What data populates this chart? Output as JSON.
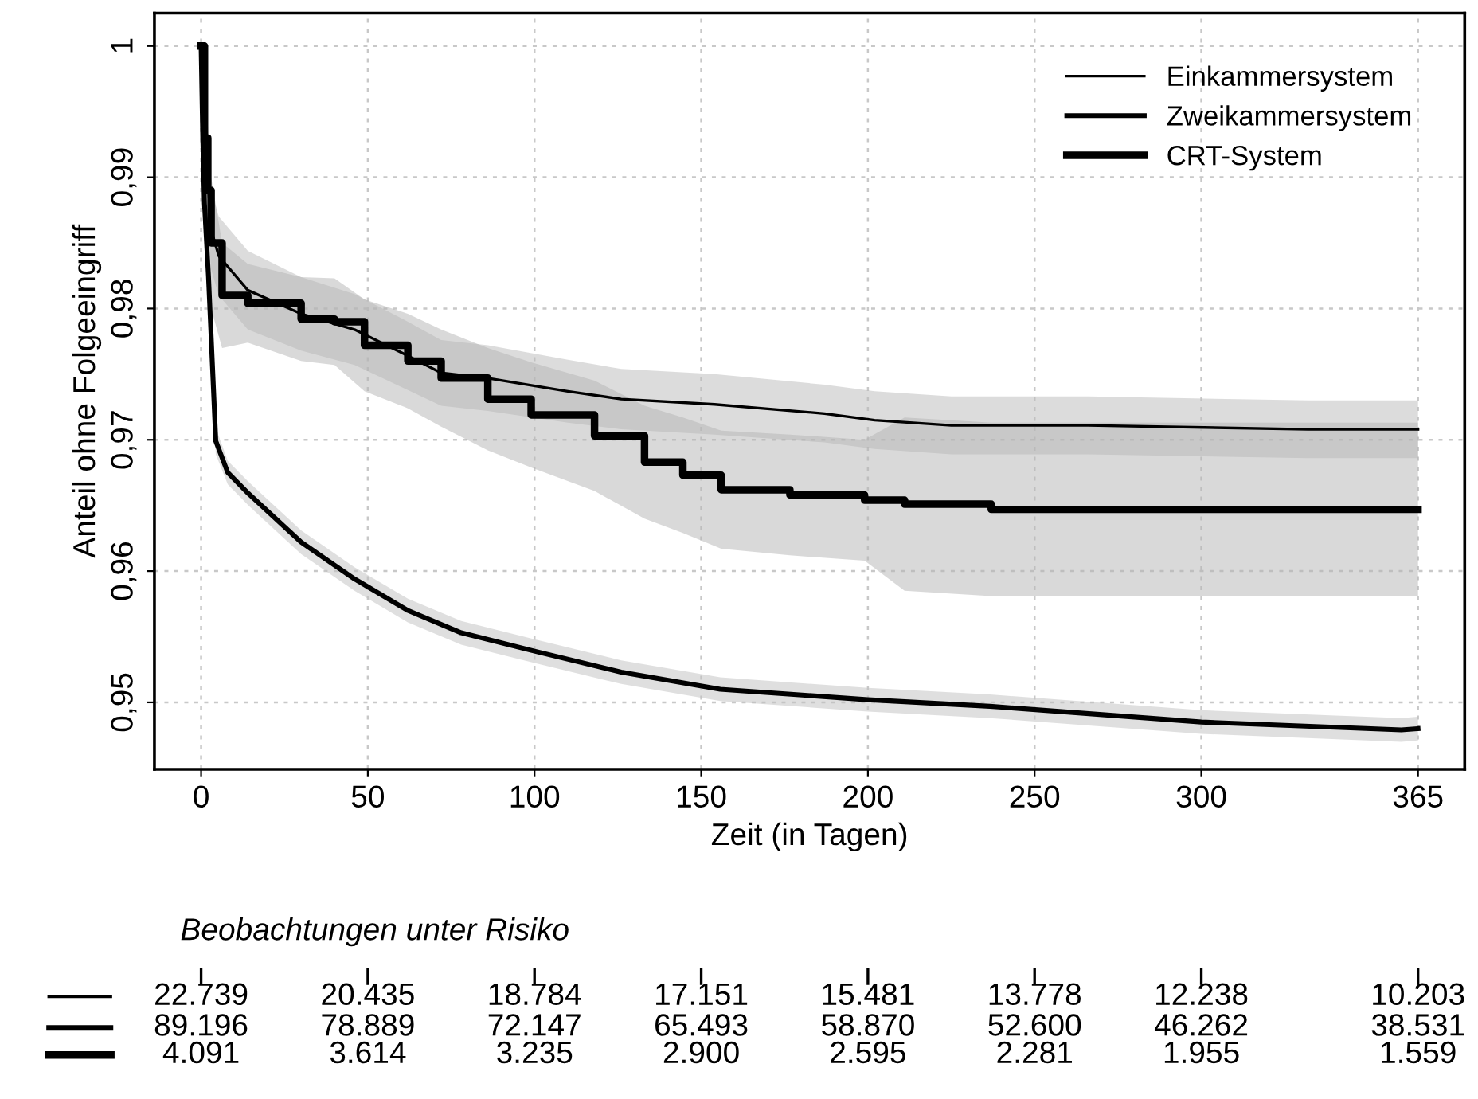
{
  "chart_data": {
    "type": "step",
    "xlabel": "Zeit (in Tagen)",
    "ylabel": "Anteil ohne Folgeeingriff",
    "xlim": [
      -14,
      379
    ],
    "ylim": [
      0.9449,
      1.0025
    ],
    "xticks": [
      0,
      50,
      100,
      150,
      200,
      250,
      300,
      365
    ],
    "yticks": [
      {
        "value": 0.95,
        "label": "0,95"
      },
      {
        "value": 0.96,
        "label": "0,96"
      },
      {
        "value": 0.97,
        "label": "0,97"
      },
      {
        "value": 0.98,
        "label": "0,98"
      },
      {
        "value": 0.99,
        "label": "0,99"
      },
      1
    ],
    "grid": true,
    "legend": "top right",
    "line_style": "solid",
    "series": [
      {
        "name": "Einkammersystem",
        "type": "line",
        "color": "#000000",
        "x": [
          0,
          1,
          2,
          3,
          5.3,
          14,
          30,
          46,
          62,
          72,
          86,
          110,
          126,
          154,
          187,
          202,
          225,
          266,
          332,
          365
        ],
        "values": [
          1,
          0.994,
          0.99,
          0.986,
          0.984,
          0.9814,
          0.9796,
          0.9784,
          0.9764,
          0.9751,
          0.9747,
          0.9737,
          0.9731,
          0.9727,
          0.972,
          0.9715,
          0.9711,
          0.9711,
          0.9708,
          0.9708
        ],
        "lower": [
          1,
          0.991,
          0.987,
          0.983,
          0.981,
          0.9784,
          0.9768,
          0.9757,
          0.9738,
          0.9726,
          0.9722,
          0.9713,
          0.9708,
          0.9704,
          0.9698,
          0.9693,
          0.9689,
          0.9689,
          0.9686,
          0.9686
        ],
        "upper": [
          1,
          0.997,
          0.993,
          0.989,
          0.987,
          0.9844,
          0.9824,
          0.9811,
          0.979,
          0.9776,
          0.9772,
          0.9761,
          0.9754,
          0.975,
          0.9742,
          0.9737,
          0.9733,
          0.9733,
          0.973,
          0.973
        ]
      },
      {
        "name": "Zweikammersystem",
        "type": "line",
        "color": "#000000",
        "x": [
          0,
          0.5,
          1,
          2.2,
          4.4,
          8,
          14.2,
          30,
          46,
          62,
          78,
          100,
          126,
          155.7,
          200,
          236.6,
          300,
          360,
          365
        ],
        "values": [
          1,
          0.993,
          0.988,
          0.9825,
          0.9699,
          0.9675,
          0.9659,
          0.9622,
          0.9594,
          0.957,
          0.9553,
          0.9539,
          0.9523,
          0.951,
          0.9502,
          0.9497,
          0.9485,
          0.9479,
          0.948
        ],
        "lower": [
          1,
          0.9918,
          0.9868,
          0.9814,
          0.9689,
          0.9666,
          0.965,
          0.9613,
          0.9585,
          0.9561,
          0.9544,
          0.953,
          0.9514,
          0.9501,
          0.9493,
          0.9488,
          0.9476,
          0.947,
          0.9471
        ],
        "upper": [
          1,
          0.9942,
          0.9892,
          0.9836,
          0.9709,
          0.9684,
          0.9668,
          0.9631,
          0.9603,
          0.9579,
          0.9562,
          0.9548,
          0.9532,
          0.9519,
          0.9511,
          0.9506,
          0.9494,
          0.9488,
          0.9489
        ]
      },
      {
        "name": "CRT-System",
        "color": "#000000",
        "x": [
          0,
          1,
          2,
          3,
          6.3,
          14,
          30,
          40,
          49,
          62,
          72,
          86,
          99,
          118,
          133,
          144.5,
          156,
          176.6,
          199,
          211,
          237,
          365
        ],
        "values": [
          1,
          0.993,
          0.989,
          0.985,
          0.981,
          0.9804,
          0.9792,
          0.979,
          0.9772,
          0.976,
          0.9747,
          0.9731,
          0.9719,
          0.9703,
          0.9683,
          0.9673,
          0.9662,
          0.9658,
          0.9654,
          0.9651,
          0.9647,
          0.9647
        ],
        "lower": [
          1,
          0.988,
          0.984,
          0.98,
          0.977,
          0.9774,
          0.976,
          0.9757,
          0.9737,
          0.9724,
          0.971,
          0.9692,
          0.9679,
          0.9661,
          0.964,
          0.9629,
          0.9617,
          0.9612,
          0.9608,
          0.9585,
          0.9581,
          0.9581
        ],
        "upper": [
          1,
          0.998,
          0.994,
          0.99,
          0.985,
          0.9834,
          0.9824,
          0.9823,
          0.9807,
          0.9796,
          0.9784,
          0.977,
          0.9759,
          0.9745,
          0.9726,
          0.9717,
          0.9707,
          0.9704,
          0.97,
          0.9717,
          0.9713,
          0.9713
        ]
      }
    ],
    "annotations": [
      "Beobachtungen unter Risiko",
      "22.739",
      "20.435",
      "18.784",
      "17.151",
      "15.481",
      "13.778",
      "12.238",
      "10.203",
      "89.196",
      "78.889",
      "72.147",
      "65.493",
      "58.870",
      "52.600",
      "46.262",
      "38.531",
      "4.091",
      "3.614",
      "3.235",
      "2.900",
      "2.595",
      "2.281",
      "1.955",
      "1.559"
    ]
  }
}
